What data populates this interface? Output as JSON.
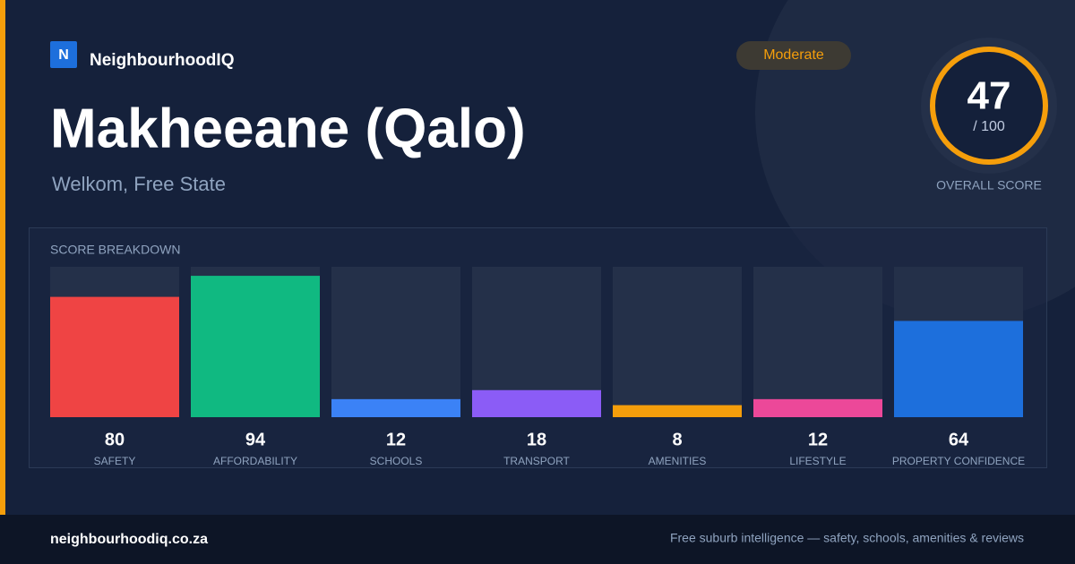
{
  "brand": {
    "logo": "N",
    "name": "NeighbourhoodIQ"
  },
  "badge": "Moderate",
  "title": "Makheeane (Qalo)",
  "subtitle": "Welkom, Free State",
  "overall": {
    "score": 47,
    "max_label": "/ 100",
    "label": "OVERALL SCORE"
  },
  "chart_data": {
    "type": "bar",
    "title": "SCORE BREAKDOWN",
    "categories": [
      "SAFETY",
      "AFFORDABILITY",
      "SCHOOLS",
      "TRANSPORT",
      "AMENITIES",
      "LIFESTYLE",
      "PROPERTY CONFIDENCE"
    ],
    "values": [
      80,
      94,
      12,
      18,
      8,
      12,
      64
    ],
    "colors": [
      "#ef4444",
      "#10b981",
      "#3b82f6",
      "#8b5cf6",
      "#f59e0b",
      "#ec4899",
      "#1d6fdc"
    ],
    "ylim": [
      0,
      100
    ]
  },
  "footer": {
    "site": "neighbourhoodiq.co.za",
    "tagline": "Free suburb intelligence — safety, schools, amenities & reviews"
  }
}
